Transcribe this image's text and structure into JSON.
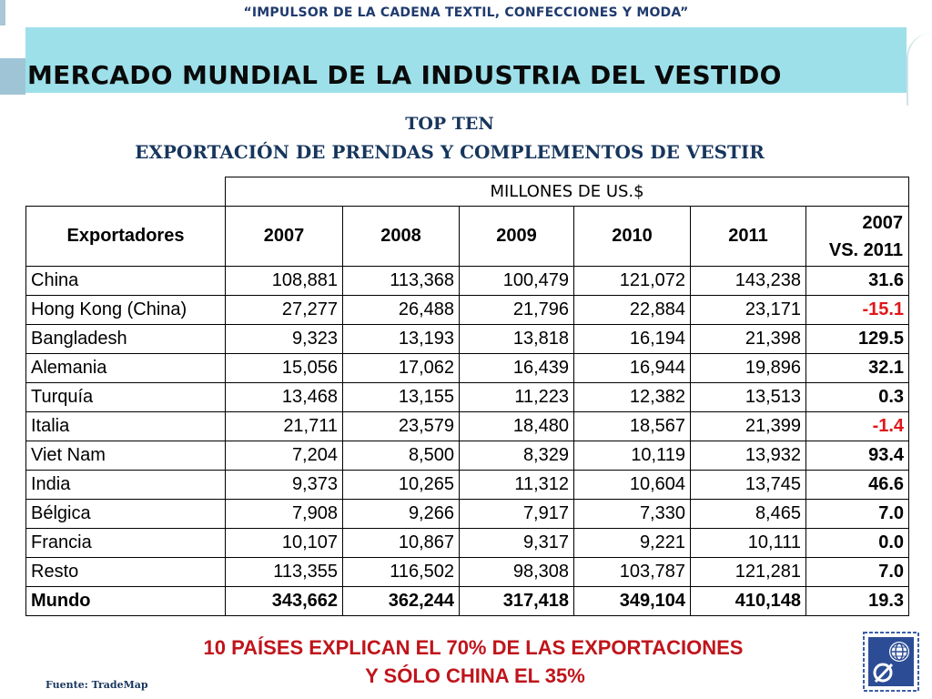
{
  "header": {
    "tagline": "“IMPULSOR DE LA CADENA TEXTIL, CONFECCIONES Y MODA”",
    "title": "MERCADO MUNDIAL DE LA INDUSTRIA DEL VESTIDO"
  },
  "subtitle": {
    "line1": "TOP TEN",
    "line2": "EXPORTACIÓN DE PRENDAS Y COMPLEMENTOS DE VESTIR"
  },
  "table": {
    "units": "MILLONES DE US.$",
    "headers": {
      "exporters": "Exportadores",
      "y2007": "2007",
      "y2008": "2008",
      "y2009": "2009",
      "y2010": "2010",
      "y2011": "2011",
      "compare_line1": "2007",
      "compare_line2": "VS. 2011"
    },
    "rows": [
      {
        "country": "China",
        "y2007": "108,881",
        "y2008": "113,368",
        "y2009": "100,479",
        "y2010": "121,072",
        "y2011": "143,238",
        "change": "31.6"
      },
      {
        "country": "Hong Kong (China)",
        "y2007": "27,277",
        "y2008": "26,488",
        "y2009": "21,796",
        "y2010": "22,884",
        "y2011": "23,171",
        "change": "-15.1"
      },
      {
        "country": "Bangladesh",
        "y2007": "9,323",
        "y2008": "13,193",
        "y2009": "13,818",
        "y2010": "16,194",
        "y2011": "21,398",
        "change": "129.5"
      },
      {
        "country": "Alemania",
        "y2007": "15,056",
        "y2008": "17,062",
        "y2009": "16,439",
        "y2010": "16,944",
        "y2011": "19,896",
        "change": "32.1"
      },
      {
        "country": "Turquía",
        "y2007": "13,468",
        "y2008": "13,155",
        "y2009": "11,223",
        "y2010": "12,382",
        "y2011": "13,513",
        "change": "0.3"
      },
      {
        "country": "Italia",
        "y2007": "21,711",
        "y2008": "23,579",
        "y2009": "18,480",
        "y2010": "18,567",
        "y2011": "21,399",
        "change": "-1.4"
      },
      {
        "country": "Viet Nam",
        "y2007": "7,204",
        "y2008": "8,500",
        "y2009": "8,329",
        "y2010": "10,119",
        "y2011": "13,932",
        "change": "93.4"
      },
      {
        "country": "India",
        "y2007": "9,373",
        "y2008": "10,265",
        "y2009": "11,312",
        "y2010": "10,604",
        "y2011": "13,745",
        "change": "46.6"
      },
      {
        "country": "Bélgica",
        "y2007": "7,908",
        "y2008": "9,266",
        "y2009": "7,917",
        "y2010": "7,330",
        "y2011": "8,465",
        "change": "7.0"
      },
      {
        "country": "Francia",
        "y2007": "10,107",
        "y2008": "10,867",
        "y2009": "9,317",
        "y2010": "9,221",
        "y2011": "10,111",
        "change": "0.0"
      },
      {
        "country": "Resto",
        "y2007": "113,355",
        "y2008": "116,502",
        "y2009": "98,308",
        "y2010": "103,787",
        "y2011": "121,281",
        "change": "7.0"
      }
    ],
    "total": {
      "country": "Mundo",
      "y2007": "343,662",
      "y2008": "362,244",
      "y2009": "317,418",
      "y2010": "349,104",
      "y2011": "410,148",
      "change": "19.3"
    }
  },
  "conclusion": {
    "line1": "10 PAÍSES EXPLICAN EL 70% DE LAS EXPORTACIONES",
    "line2": "Y SÓLO CHINA EL 35%"
  },
  "source": "Fuente: TradeMap",
  "colors": {
    "title_band": "#9ee0ea",
    "subtitle": "#17365d",
    "negative": "#e0171a",
    "conclusion": "#c0141b"
  }
}
